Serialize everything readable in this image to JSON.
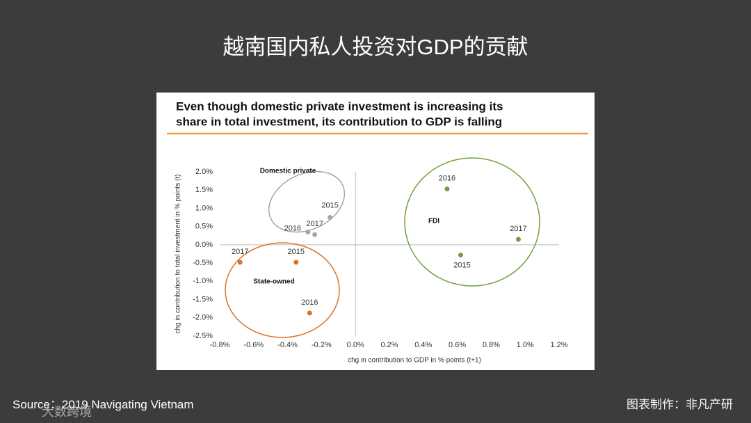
{
  "slide": {
    "title": "越南国内私人投资对GDP的贡献",
    "source": "Source：2019 Navigating Vietnam",
    "credit": "图表制作：非凡产研",
    "watermark": "大数跨境"
  },
  "chart_data": {
    "type": "scatter",
    "title": [
      "Even though domestic private investment is increasing its",
      "share in total investment, its contribution to GDP is falling"
    ],
    "x_label": "chg in contribution to GDP in % points (t+1)",
    "y_label": "chg in contribution to total investment in % points (t)",
    "xlim": [
      -0.8,
      1.2
    ],
    "xticks": [
      {
        "value": -0.8,
        "label": "-0.8%"
      },
      {
        "value": -0.6,
        "label": "-0.6%"
      },
      {
        "value": -0.4,
        "label": "-0.4%"
      },
      {
        "value": -0.2,
        "label": "-0.2%"
      },
      {
        "value": 0,
        "label": "0.0%"
      },
      {
        "value": 0.2,
        "label": "0.2%"
      },
      {
        "value": 0.4,
        "label": "0.4%"
      },
      {
        "value": 0.6,
        "label": "0.6%"
      },
      {
        "value": 0.8,
        "label": "0.8%"
      },
      {
        "value": 1.0,
        "label": "1.0%"
      },
      {
        "value": 1.2,
        "label": "1.2%"
      }
    ],
    "ylim": [
      -2.5,
      2.0
    ],
    "yticks": [
      {
        "value": 2.0,
        "label": "2.0%"
      },
      {
        "value": 1.5,
        "label": "1.5%"
      },
      {
        "value": 1.0,
        "label": "1.0%"
      },
      {
        "value": 0.5,
        "label": "0.5%"
      },
      {
        "value": 0,
        "label": "0.0%"
      },
      {
        "value": -0.5,
        "label": "-0.5%"
      },
      {
        "value": -1.0,
        "label": "-1.0%"
      },
      {
        "value": -1.5,
        "label": "-1.5%"
      },
      {
        "value": -2.0,
        "label": "-2.0%"
      },
      {
        "value": -2.5,
        "label": "-2.5%"
      }
    ],
    "series": [
      {
        "name": "Domestic private",
        "color": "#a5a5a5",
        "point_labels": [
          "2015",
          "2016",
          "2017"
        ],
        "x": [
          -0.15,
          -0.28,
          -0.24
        ],
        "values": [
          0.75,
          0.35,
          0.28
        ]
      },
      {
        "name": "State-owned",
        "color": "#e07020",
        "point_labels": [
          "2017",
          "2015",
          "2016"
        ],
        "x": [
          -0.68,
          -0.35,
          -0.27
        ],
        "values": [
          -0.48,
          -0.48,
          -1.87
        ]
      },
      {
        "name": "FDI",
        "color": "#70a040",
        "point_labels": [
          "2016",
          "2015",
          "2017"
        ],
        "x": [
          0.54,
          0.62,
          0.96
        ],
        "values": [
          1.53,
          -0.28,
          0.15
        ]
      }
    ]
  }
}
